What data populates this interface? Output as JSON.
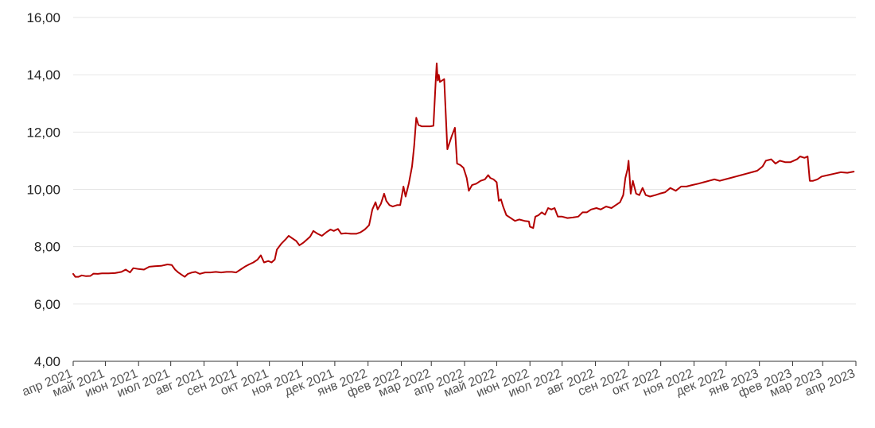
{
  "chart_data": {
    "type": "line",
    "title": "",
    "xlabel": "",
    "ylabel": "",
    "ylim": [
      4,
      16
    ],
    "yticks": [
      "4,00",
      "6,00",
      "8,00",
      "10,00",
      "12,00",
      "14,00",
      "16,00"
    ],
    "ytick_values": [
      4,
      6,
      8,
      10,
      12,
      14,
      16
    ],
    "xlim": [
      "2021-04-01",
      "2023-04-01"
    ],
    "xticks": [
      {
        "date": "2021-04-01",
        "label": "апр 2021"
      },
      {
        "date": "2021-05-01",
        "label": "май 2021"
      },
      {
        "date": "2021-06-01",
        "label": "июн 2021"
      },
      {
        "date": "2021-07-01",
        "label": "июл 2021"
      },
      {
        "date": "2021-08-01",
        "label": "авг 2021"
      },
      {
        "date": "2021-09-01",
        "label": "сен 2021"
      },
      {
        "date": "2021-10-01",
        "label": "окт 2021"
      },
      {
        "date": "2021-11-01",
        "label": "ноя 2021"
      },
      {
        "date": "2021-12-01",
        "label": "дек 2021"
      },
      {
        "date": "2022-01-01",
        "label": "янв 2022"
      },
      {
        "date": "2022-02-01",
        "label": "фев 2022"
      },
      {
        "date": "2022-03-01",
        "label": "мар 2022"
      },
      {
        "date": "2022-04-01",
        "label": "апр 2022"
      },
      {
        "date": "2022-05-01",
        "label": "май 2022"
      },
      {
        "date": "2022-06-01",
        "label": "июн 2022"
      },
      {
        "date": "2022-07-01",
        "label": "июл 2022"
      },
      {
        "date": "2022-08-01",
        "label": "авг 2022"
      },
      {
        "date": "2022-09-01",
        "label": "сен 2022"
      },
      {
        "date": "2022-10-01",
        "label": "окт 2022"
      },
      {
        "date": "2022-11-01",
        "label": "ноя 2022"
      },
      {
        "date": "2022-12-01",
        "label": "дек 2022"
      },
      {
        "date": "2023-01-01",
        "label": "янв 2023"
      },
      {
        "date": "2023-02-01",
        "label": "фев 2023"
      },
      {
        "date": "2023-03-01",
        "label": "мар 2023"
      },
      {
        "date": "2023-04-01",
        "label": "апр 2023"
      }
    ],
    "grid": "horizontal",
    "legend": "none",
    "line_color": "#b30000",
    "grid_color": "#e6e6e6",
    "series": [
      {
        "points": [
          [
            "2021-04-01",
            7.05
          ],
          [
            "2021-04-03",
            6.95
          ],
          [
            "2021-04-06",
            6.95
          ],
          [
            "2021-04-09",
            7.0
          ],
          [
            "2021-04-13",
            6.97
          ],
          [
            "2021-04-17",
            6.98
          ],
          [
            "2021-04-20",
            7.06
          ],
          [
            "2021-04-24",
            7.05
          ],
          [
            "2021-04-28",
            7.07
          ],
          [
            "2021-05-04",
            7.07
          ],
          [
            "2021-05-10",
            7.08
          ],
          [
            "2021-05-16",
            7.12
          ],
          [
            "2021-05-20",
            7.2
          ],
          [
            "2021-05-24",
            7.1
          ],
          [
            "2021-05-27",
            7.25
          ],
          [
            "2021-06-01",
            7.22
          ],
          [
            "2021-06-06",
            7.2
          ],
          [
            "2021-06-11",
            7.3
          ],
          [
            "2021-06-16",
            7.32
          ],
          [
            "2021-06-22",
            7.33
          ],
          [
            "2021-06-28",
            7.38
          ],
          [
            "2021-07-02",
            7.36
          ],
          [
            "2021-07-05",
            7.2
          ],
          [
            "2021-07-08",
            7.1
          ],
          [
            "2021-07-12",
            7.0
          ],
          [
            "2021-07-14",
            6.95
          ],
          [
            "2021-07-17",
            7.05
          ],
          [
            "2021-07-21",
            7.1
          ],
          [
            "2021-07-24",
            7.12
          ],
          [
            "2021-07-28",
            7.05
          ],
          [
            "2021-08-02",
            7.1
          ],
          [
            "2021-08-07",
            7.1
          ],
          [
            "2021-08-12",
            7.12
          ],
          [
            "2021-08-17",
            7.1
          ],
          [
            "2021-08-22",
            7.12
          ],
          [
            "2021-08-27",
            7.12
          ],
          [
            "2021-08-31",
            7.1
          ],
          [
            "2021-09-04",
            7.2
          ],
          [
            "2021-09-08",
            7.3
          ],
          [
            "2021-09-12",
            7.38
          ],
          [
            "2021-09-16",
            7.45
          ],
          [
            "2021-09-20",
            7.55
          ],
          [
            "2021-09-23",
            7.7
          ],
          [
            "2021-09-26",
            7.45
          ],
          [
            "2021-09-30",
            7.5
          ],
          [
            "2021-10-03",
            7.45
          ],
          [
            "2021-10-06",
            7.55
          ],
          [
            "2021-10-08",
            7.9
          ],
          [
            "2021-10-12",
            8.1
          ],
          [
            "2021-10-16",
            8.25
          ],
          [
            "2021-10-19",
            8.38
          ],
          [
            "2021-10-22",
            8.3
          ],
          [
            "2021-10-26",
            8.2
          ],
          [
            "2021-10-29",
            8.05
          ],
          [
            "2021-11-02",
            8.15
          ],
          [
            "2021-11-05",
            8.25
          ],
          [
            "2021-11-08",
            8.35
          ],
          [
            "2021-11-11",
            8.55
          ],
          [
            "2021-11-15",
            8.45
          ],
          [
            "2021-11-19",
            8.38
          ],
          [
            "2021-11-23",
            8.5
          ],
          [
            "2021-11-27",
            8.6
          ],
          [
            "2021-11-30",
            8.55
          ],
          [
            "2021-12-04",
            8.62
          ],
          [
            "2021-12-07",
            8.45
          ],
          [
            "2021-12-11",
            8.47
          ],
          [
            "2021-12-16",
            8.45
          ],
          [
            "2021-12-21",
            8.45
          ],
          [
            "2021-12-25",
            8.5
          ],
          [
            "2021-12-29",
            8.6
          ],
          [
            "2022-01-02",
            8.75
          ],
          [
            "2022-01-05",
            9.3
          ],
          [
            "2022-01-08",
            9.55
          ],
          [
            "2022-01-10",
            9.3
          ],
          [
            "2022-01-13",
            9.5
          ],
          [
            "2022-01-16",
            9.85
          ],
          [
            "2022-01-18",
            9.6
          ],
          [
            "2022-01-21",
            9.45
          ],
          [
            "2022-01-24",
            9.4
          ],
          [
            "2022-01-28",
            9.45
          ],
          [
            "2022-01-31",
            9.45
          ],
          [
            "2022-02-03",
            10.1
          ],
          [
            "2022-02-05",
            9.75
          ],
          [
            "2022-02-08",
            10.2
          ],
          [
            "2022-02-11",
            10.8
          ],
          [
            "2022-02-13",
            11.5
          ],
          [
            "2022-02-15",
            12.5
          ],
          [
            "2022-02-17",
            12.25
          ],
          [
            "2022-02-20",
            12.2
          ],
          [
            "2022-02-24",
            12.2
          ],
          [
            "2022-02-28",
            12.2
          ],
          [
            "2022-03-03",
            12.22
          ],
          [
            "2022-03-05",
            13.7
          ],
          [
            "2022-03-06",
            14.4
          ],
          [
            "2022-03-07",
            13.8
          ],
          [
            "2022-03-08",
            14.0
          ],
          [
            "2022-03-09",
            13.75
          ],
          [
            "2022-03-11",
            13.8
          ],
          [
            "2022-03-13",
            13.85
          ],
          [
            "2022-03-16",
            11.4
          ],
          [
            "2022-03-20",
            11.85
          ],
          [
            "2022-03-23",
            12.15
          ],
          [
            "2022-03-25",
            10.9
          ],
          [
            "2022-03-28",
            10.85
          ],
          [
            "2022-03-31",
            10.75
          ],
          [
            "2022-04-03",
            10.4
          ],
          [
            "2022-04-05",
            9.95
          ],
          [
            "2022-04-08",
            10.15
          ],
          [
            "2022-04-12",
            10.2
          ],
          [
            "2022-04-16",
            10.3
          ],
          [
            "2022-04-20",
            10.35
          ],
          [
            "2022-04-23",
            10.5
          ],
          [
            "2022-04-25",
            10.4
          ],
          [
            "2022-04-28",
            10.35
          ],
          [
            "2022-05-01",
            10.25
          ],
          [
            "2022-05-03",
            9.6
          ],
          [
            "2022-05-05",
            9.65
          ],
          [
            "2022-05-07",
            9.4
          ],
          [
            "2022-05-10",
            9.1
          ],
          [
            "2022-05-14",
            9.0
          ],
          [
            "2022-05-18",
            8.9
          ],
          [
            "2022-05-22",
            8.95
          ],
          [
            "2022-05-27",
            8.9
          ],
          [
            "2022-05-31",
            8.88
          ],
          [
            "2022-06-01",
            8.7
          ],
          [
            "2022-06-04",
            8.65
          ],
          [
            "2022-06-06",
            9.05
          ],
          [
            "2022-06-09",
            9.1
          ],
          [
            "2022-06-12",
            9.2
          ],
          [
            "2022-06-15",
            9.12
          ],
          [
            "2022-06-18",
            9.35
          ],
          [
            "2022-06-21",
            9.3
          ],
          [
            "2022-06-24",
            9.35
          ],
          [
            "2022-06-27",
            9.05
          ],
          [
            "2022-07-01",
            9.05
          ],
          [
            "2022-07-06",
            9.0
          ],
          [
            "2022-07-11",
            9.02
          ],
          [
            "2022-07-16",
            9.05
          ],
          [
            "2022-07-20",
            9.2
          ],
          [
            "2022-07-24",
            9.2
          ],
          [
            "2022-07-28",
            9.3
          ],
          [
            "2022-08-02",
            9.35
          ],
          [
            "2022-08-06",
            9.3
          ],
          [
            "2022-08-11",
            9.4
          ],
          [
            "2022-08-16",
            9.35
          ],
          [
            "2022-08-20",
            9.45
          ],
          [
            "2022-08-24",
            9.55
          ],
          [
            "2022-08-27",
            9.8
          ],
          [
            "2022-08-29",
            10.4
          ],
          [
            "2022-08-31",
            10.7
          ],
          [
            "2022-09-01",
            11.0
          ],
          [
            "2022-09-03",
            9.85
          ],
          [
            "2022-09-05",
            10.3
          ],
          [
            "2022-09-08",
            9.85
          ],
          [
            "2022-09-11",
            9.8
          ],
          [
            "2022-09-14",
            10.05
          ],
          [
            "2022-09-17",
            9.8
          ],
          [
            "2022-09-21",
            9.75
          ],
          [
            "2022-09-26",
            9.8
          ],
          [
            "2022-09-30",
            9.85
          ],
          [
            "2022-10-05",
            9.9
          ],
          [
            "2022-10-10",
            10.05
          ],
          [
            "2022-10-15",
            9.95
          ],
          [
            "2022-10-20",
            10.1
          ],
          [
            "2022-10-25",
            10.1
          ],
          [
            "2022-10-30",
            10.15
          ],
          [
            "2022-11-05",
            10.2
          ],
          [
            "2022-11-10",
            10.25
          ],
          [
            "2022-11-15",
            10.3
          ],
          [
            "2022-11-20",
            10.35
          ],
          [
            "2022-11-25",
            10.3
          ],
          [
            "2022-11-30",
            10.35
          ],
          [
            "2022-12-05",
            10.4
          ],
          [
            "2022-12-10",
            10.45
          ],
          [
            "2022-12-15",
            10.5
          ],
          [
            "2022-12-20",
            10.55
          ],
          [
            "2022-12-25",
            10.6
          ],
          [
            "2022-12-30",
            10.65
          ],
          [
            "2023-01-04",
            10.8
          ],
          [
            "2023-01-07",
            11.0
          ],
          [
            "2023-01-12",
            11.05
          ],
          [
            "2023-01-16",
            10.9
          ],
          [
            "2023-01-20",
            11.0
          ],
          [
            "2023-01-25",
            10.95
          ],
          [
            "2023-01-30",
            10.95
          ],
          [
            "2023-02-05",
            11.05
          ],
          [
            "2023-02-08",
            11.15
          ],
          [
            "2023-02-12",
            11.1
          ],
          [
            "2023-02-15",
            11.15
          ],
          [
            "2023-02-17",
            10.3
          ],
          [
            "2023-02-20",
            10.3
          ],
          [
            "2023-02-24",
            10.35
          ],
          [
            "2023-02-28",
            10.45
          ],
          [
            "2023-03-06",
            10.5
          ],
          [
            "2023-03-12",
            10.55
          ],
          [
            "2023-03-18",
            10.6
          ],
          [
            "2023-03-24",
            10.58
          ],
          [
            "2023-03-30",
            10.62
          ]
        ]
      }
    ]
  }
}
